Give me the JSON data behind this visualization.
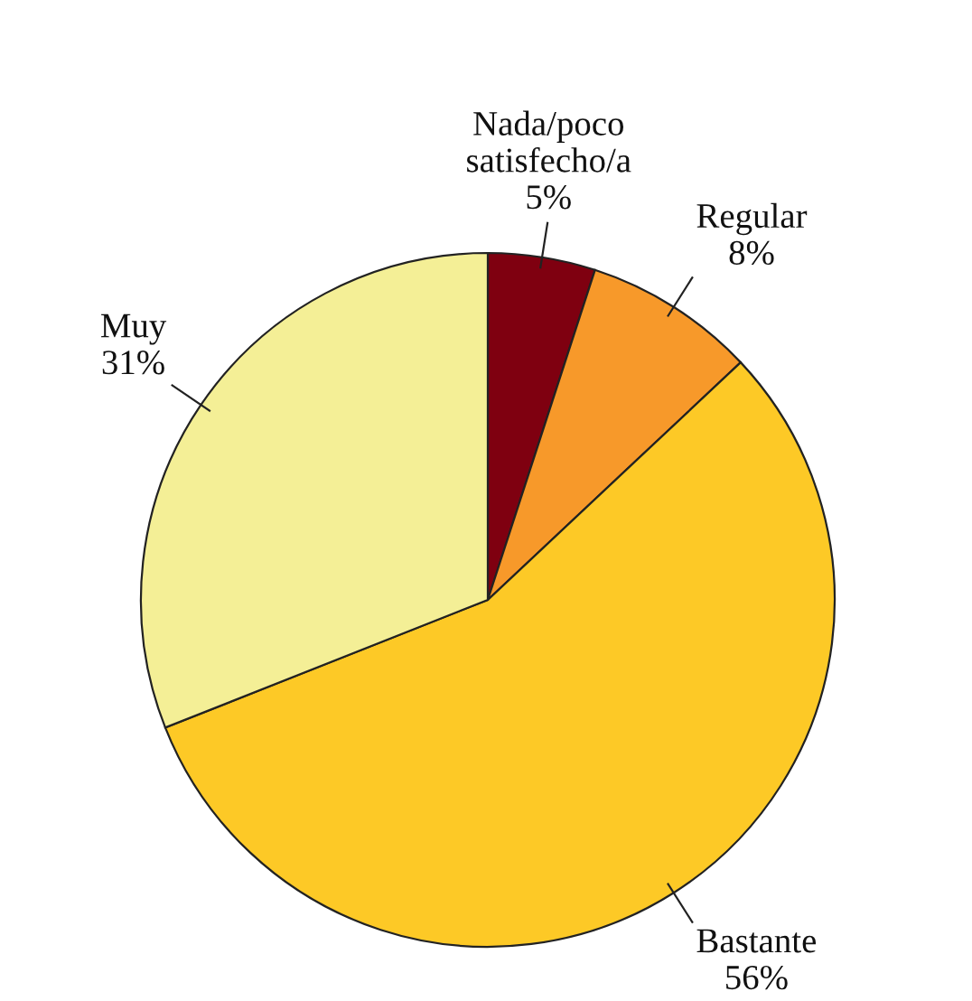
{
  "chart_data": {
    "type": "pie",
    "categories": [
      "Nada/poco\nsatisfecho/a",
      "Regular",
      "Bastante",
      "Muy"
    ],
    "values": [
      5,
      8,
      56,
      31
    ],
    "colors": [
      "#7f0010",
      "#f7992a",
      "#fdc926",
      "#f4ef96"
    ],
    "value_labels": [
      "5%",
      "8%",
      "56%",
      "31%"
    ],
    "legend": false
  }
}
